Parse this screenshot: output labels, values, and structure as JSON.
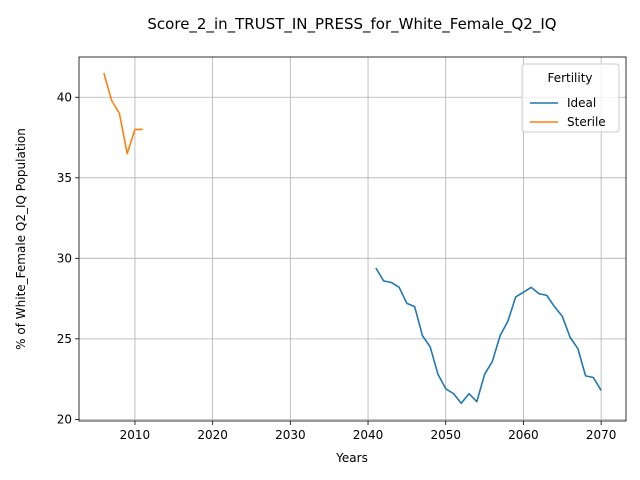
{
  "chart_data": {
    "type": "line",
    "title": "Score_2_in_TRUST_IN_PRESS_for_White_Female_Q2_IQ",
    "xlabel": "Years",
    "ylabel": "% of White_Female Q2_IQ Population",
    "xlim": [
      2002.8,
      2073.2
    ],
    "ylim": [
      19.9,
      42.5
    ],
    "xticks": [
      2010,
      2020,
      2030,
      2040,
      2050,
      2060,
      2070
    ],
    "yticks": [
      20,
      25,
      30,
      35,
      40
    ],
    "grid": true,
    "legend": {
      "title": "Fertility",
      "placement": "top-right",
      "entries": [
        "Ideal",
        "Sterile"
      ]
    },
    "series": [
      {
        "name": "Ideal",
        "color": "#1f77b4",
        "x": [
          2041,
          2042,
          2043,
          2044,
          2045,
          2046,
          2047,
          2048,
          2049,
          2050,
          2051,
          2052,
          2053,
          2054,
          2055,
          2056,
          2057,
          2058,
          2059,
          2060,
          2061,
          2062,
          2063,
          2064,
          2065,
          2066,
          2067,
          2068,
          2069,
          2070
        ],
        "y": [
          29.4,
          28.6,
          28.5,
          28.2,
          27.2,
          27.0,
          25.2,
          24.5,
          22.8,
          21.9,
          21.6,
          21.0,
          21.6,
          21.1,
          22.8,
          23.6,
          25.2,
          26.1,
          27.6,
          27.9,
          28.2,
          27.8,
          27.7,
          27.0,
          26.4,
          25.1,
          24.4,
          22.7,
          22.6,
          21.8
        ]
      },
      {
        "name": "Sterile",
        "color": "#ff7f0e",
        "x": [
          2006,
          2007,
          2008,
          2009,
          2010,
          2011
        ],
        "y": [
          41.5,
          39.8,
          39.0,
          36.5,
          38.0,
          38.0
        ]
      }
    ]
  }
}
